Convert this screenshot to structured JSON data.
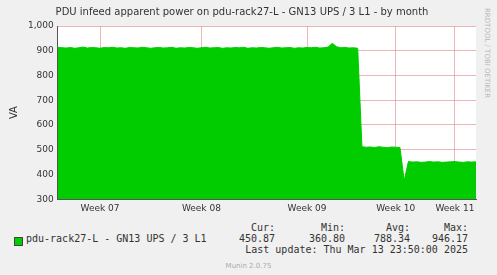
{
  "chart_data": {
    "type": "area",
    "title": "PDU infeed apparent power on pdu-rack27-L - GN13 UPS / 3 L1 - by month",
    "y_label": "VA",
    "categories": [
      null,
      null,
      null,
      null,
      null,
      null,
      null,
      null,
      null,
      null,
      "Week 07",
      null,
      null,
      null,
      null,
      null,
      null,
      null,
      null,
      null,
      null,
      null,
      null,
      null,
      null,
      null,
      null,
      null,
      null,
      null,
      null,
      null,
      null,
      null,
      "Week 08",
      null,
      null,
      null,
      null,
      null,
      null,
      null,
      null,
      null,
      null,
      null,
      null,
      null,
      null,
      null,
      null,
      null,
      null,
      null,
      null,
      null,
      null,
      null,
      null,
      "Week 09",
      null,
      null,
      null,
      null,
      null,
      null,
      null,
      null,
      null,
      null,
      null,
      null,
      null,
      null,
      null,
      null,
      null,
      null,
      null,
      null,
      "Week 10",
      null,
      null,
      null,
      null,
      null,
      null,
      null,
      null,
      null,
      null,
      null,
      null,
      null,
      "Week 11",
      null,
      null,
      null,
      null,
      null
    ],
    "series": [
      {
        "name": "pdu-rack27-L - GN13 UPS / 3 L1",
        "color": "#00cc00",
        "values": [
          914,
          912,
          911,
          913,
          910,
          912,
          915,
          911,
          913,
          912,
          910,
          913,
          912,
          914,
          911,
          912,
          910,
          913,
          912,
          911,
          914,
          912,
          910,
          912,
          913,
          911,
          912,
          914,
          910,
          912,
          911,
          913,
          912,
          910,
          912,
          914,
          911,
          912,
          913,
          910,
          912,
          911,
          913,
          912,
          914,
          910,
          912,
          911,
          913,
          912,
          910,
          912,
          914,
          911,
          912,
          913,
          910,
          912,
          911,
          913,
          912,
          914,
          911,
          912,
          915,
          930,
          916,
          912,
          913,
          911,
          912,
          910,
          512,
          510,
          511,
          509,
          512,
          510,
          508,
          511,
          510,
          509,
          375,
          452,
          450,
          451,
          449,
          450,
          452,
          450,
          451,
          449,
          450,
          451,
          452,
          450,
          449,
          451,
          450,
          451
        ]
      }
    ],
    "ylim": [
      300,
      1000
    ],
    "yticks": [
      300,
      400,
      500,
      600,
      700,
      800,
      900,
      1000
    ],
    "grid": true,
    "legend": "bottom"
  },
  "summary": {
    "headers": [
      "Cur:",
      "Min:",
      "Avg:",
      "Max:"
    ],
    "values": [
      {
        "value": 450.87,
        "label": "450.87"
      },
      {
        "value": 360.8,
        "label": "360.80"
      },
      {
        "value": 788.34,
        "label": "788.34"
      },
      {
        "value": 946.17,
        "label": "946.17"
      }
    ],
    "last_update": "Last update: Thu Mar 13 23:50:00 2025",
    "generator": "Munin 2.0.75",
    "watermark": "RRDTOOL / TOBI OETIKER"
  }
}
